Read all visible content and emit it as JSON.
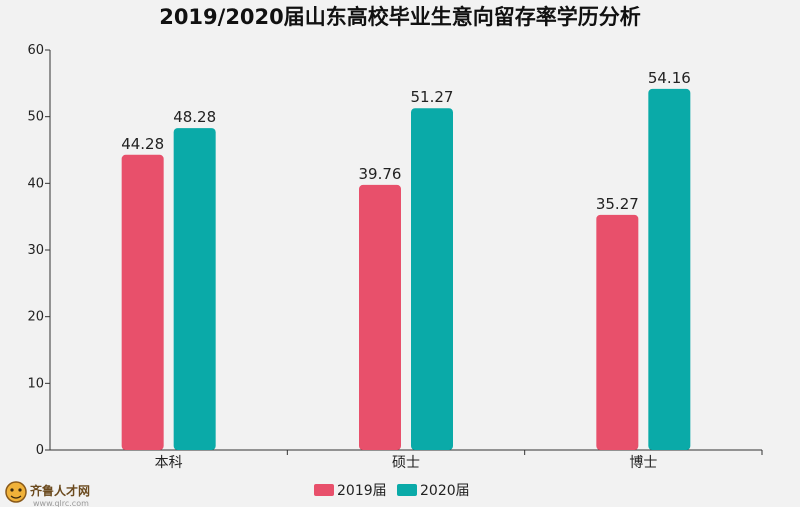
{
  "chart_data": {
    "type": "bar",
    "title": "2019/2020届山东高校毕业生意向留存率学历分析",
    "categories": [
      "本科",
      "硕士",
      "博士"
    ],
    "series": [
      {
        "name": "2019届",
        "values": [
          44.28,
          39.76,
          35.27
        ],
        "color": "#e8506b"
      },
      {
        "name": "2020届",
        "values": [
          48.28,
          51.27,
          54.16
        ],
        "color": "#0aaaa8"
      }
    ],
    "ylim": [
      0,
      60
    ],
    "yticks": [
      0,
      10,
      20,
      30,
      40,
      50,
      60
    ],
    "grid": false,
    "legend_position": "bottom-center",
    "data_labels": true
  },
  "watermark": {
    "name": "齐鲁人才网",
    "url": "www.qlrc.com"
  }
}
